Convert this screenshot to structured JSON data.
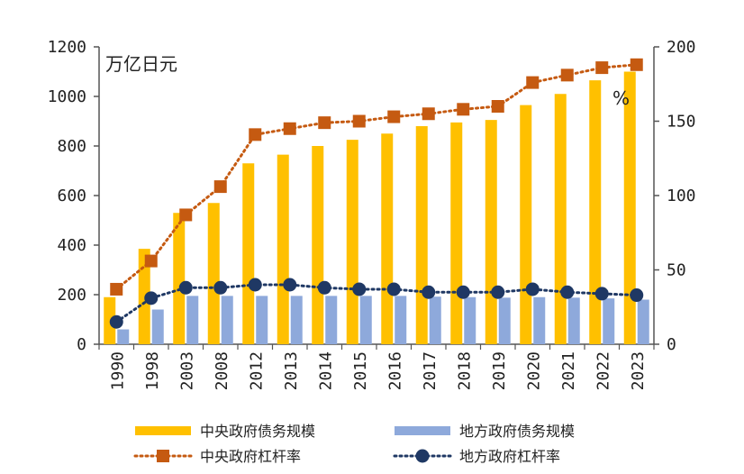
{
  "chart_data": {
    "type": "bar+line",
    "title": "",
    "left_axis_label": "万亿日元",
    "right_axis_label": "%",
    "categories": [
      "1990",
      "1998",
      "2003",
      "2008",
      "2012",
      "2013",
      "2014",
      "2015",
      "2016",
      "2017",
      "2018",
      "2019",
      "2020",
      "2021",
      "2022",
      "2023"
    ],
    "left_ylim": [
      0,
      1200
    ],
    "left_yticks": [
      "0",
      "200",
      "400",
      "600",
      "800",
      "1000",
      "1200"
    ],
    "right_ylim": [
      0,
      200
    ],
    "right_yticks": [
      "0",
      "50",
      "100",
      "150",
      "200"
    ],
    "series": [
      {
        "name": "中央政府债务规模",
        "kind": "bar",
        "axis": "left",
        "color": "#FFC000",
        "values": [
          190,
          385,
          530,
          570,
          730,
          765,
          800,
          825,
          850,
          880,
          895,
          905,
          965,
          1010,
          1065,
          1100
        ]
      },
      {
        "name": "地方政府债务规模",
        "kind": "bar",
        "axis": "left",
        "color": "#8EA9DB",
        "values": [
          60,
          140,
          195,
          195,
          195,
          195,
          195,
          195,
          195,
          192,
          190,
          188,
          190,
          188,
          185,
          180
        ]
      },
      {
        "name": "中央政府杠杆率",
        "kind": "line",
        "axis": "right",
        "color": "#C55A11",
        "marker": "square",
        "values": [
          37,
          56,
          87,
          106,
          141,
          145,
          149,
          150,
          153,
          155,
          158,
          160,
          176,
          181,
          186,
          188
        ]
      },
      {
        "name": "地方政府杠杆率",
        "kind": "line",
        "axis": "right",
        "color": "#1F3864",
        "marker": "circle",
        "values": [
          15,
          31,
          38,
          38,
          40,
          40,
          38,
          37,
          37,
          35,
          35,
          35,
          37,
          35,
          34,
          33
        ]
      }
    ],
    "legend": [
      "中央政府债务规模",
      "地方政府债务规模",
      "中央政府杠杆率",
      "地方政府杠杆率"
    ]
  }
}
